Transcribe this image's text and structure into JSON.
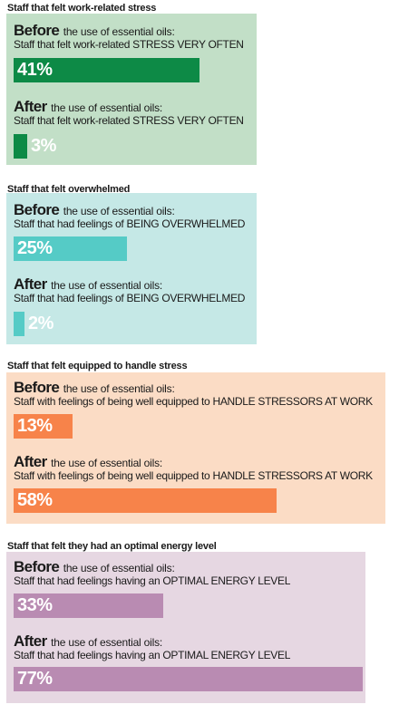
{
  "chart_data": [
    {
      "type": "bar",
      "title": "Staff that felt work-related stress",
      "colors": {
        "panel": "#c2dfc7",
        "bar": "#0d8a46"
      },
      "categories": [
        "Before",
        "After"
      ],
      "values": [
        41,
        3
      ],
      "labels": [
        "41%",
        "3%"
      ],
      "category_suffix": "the use of essential oils:",
      "description": "Staff that felt work-related STRESS VERY OFTEN"
    },
    {
      "type": "bar",
      "title": "Staff that felt overwhelmed",
      "colors": {
        "panel": "#c5e8e6",
        "bar": "#55cbc6"
      },
      "categories": [
        "Before",
        "After"
      ],
      "values": [
        25,
        2
      ],
      "labels": [
        "25%",
        "2%"
      ],
      "category_suffix": "the use of essential oils:",
      "description": "Staff that had feelings of BEING OVERWHELMED"
    },
    {
      "type": "bar",
      "title": "Staff that felt equipped to handle stress",
      "colors": {
        "panel": "#fbdcc5",
        "bar": "#f7834a"
      },
      "categories": [
        "Before",
        "After"
      ],
      "values": [
        13,
        58
      ],
      "labels": [
        "13%",
        "58%"
      ],
      "category_suffix": "the use of essential oils:",
      "description": "Staff with feelings of being well equipped to HANDLE STRESSORS AT WORK"
    },
    {
      "type": "bar",
      "title": "Staff that felt they had an optimal energy level",
      "colors": {
        "panel": "#e6d7e2",
        "bar": "#b98bb2"
      },
      "categories": [
        "Before",
        "After"
      ],
      "values": [
        33,
        77
      ],
      "labels": [
        "33%",
        "77%"
      ],
      "category_suffix": "the use of essential oils:",
      "description": "Staff that had feelings having an OPTIMAL ENERGY LEVEL"
    }
  ]
}
